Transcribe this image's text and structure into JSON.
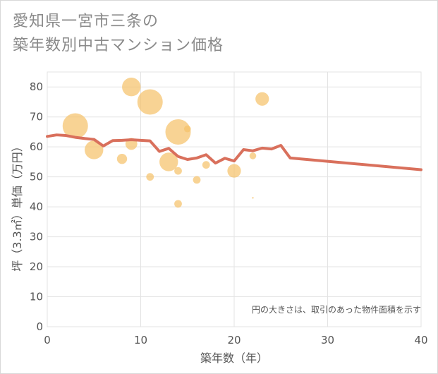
{
  "title_line1": "愛知県一宮市三条の",
  "title_line2": "築年数別中古マンション価格",
  "chart_data": {
    "type": "scatter",
    "xlabel": "築年数（年）",
    "ylabel": "坪（3.3㎡）単価（万円）",
    "xlim": [
      0,
      40
    ],
    "ylim": [
      0,
      85
    ],
    "xticks": [
      0,
      10,
      20,
      30,
      40
    ],
    "yticks": [
      0,
      10,
      20,
      30,
      40,
      50,
      60,
      70,
      80
    ],
    "grid": true,
    "note": "円の大きさは、取引のあった物件面積を示す",
    "colors": {
      "bubble": "#f5c26b",
      "line": "#d9705c",
      "grid": "#e3e3e3"
    },
    "bubbles": [
      {
        "x": 3,
        "y": 67,
        "size": 3.0
      },
      {
        "x": 5,
        "y": 59,
        "size": 2.2
      },
      {
        "x": 8,
        "y": 56,
        "size": 1.2
      },
      {
        "x": 9,
        "y": 80,
        "size": 2.2
      },
      {
        "x": 9,
        "y": 61,
        "size": 1.4
      },
      {
        "x": 11,
        "y": 75,
        "size": 3.0
      },
      {
        "x": 11,
        "y": 50,
        "size": 0.9
      },
      {
        "x": 13,
        "y": 55,
        "size": 2.2
      },
      {
        "x": 14,
        "y": 65,
        "size": 3.0
      },
      {
        "x": 14,
        "y": 52,
        "size": 0.9
      },
      {
        "x": 14,
        "y": 41,
        "size": 0.9
      },
      {
        "x": 15,
        "y": 66,
        "size": 0.8
      },
      {
        "x": 16,
        "y": 49,
        "size": 0.9
      },
      {
        "x": 17,
        "y": 54,
        "size": 0.9
      },
      {
        "x": 20,
        "y": 52,
        "size": 1.6
      },
      {
        "x": 22,
        "y": 57,
        "size": 0.8
      },
      {
        "x": 22,
        "y": 43,
        "size": 0.2
      },
      {
        "x": 23,
        "y": 76,
        "size": 1.6
      }
    ],
    "trend": {
      "x": [
        0,
        1,
        2,
        3,
        4,
        5,
        6,
        7,
        8,
        9,
        10,
        11,
        12,
        13,
        14,
        15,
        16,
        17,
        18,
        19,
        20,
        21,
        22,
        23,
        24,
        25,
        26,
        40
      ],
      "y": [
        63.5,
        64,
        63.8,
        63.2,
        62.8,
        62.5,
        60.3,
        62.1,
        62.2,
        62.4,
        62.2,
        62,
        58.5,
        59.5,
        56.8,
        55.8,
        56.3,
        57.4,
        54.6,
        56.2,
        55.3,
        59.1,
        58.7,
        59.6,
        59.3,
        60.5,
        56.3,
        52.4
      ]
    }
  }
}
